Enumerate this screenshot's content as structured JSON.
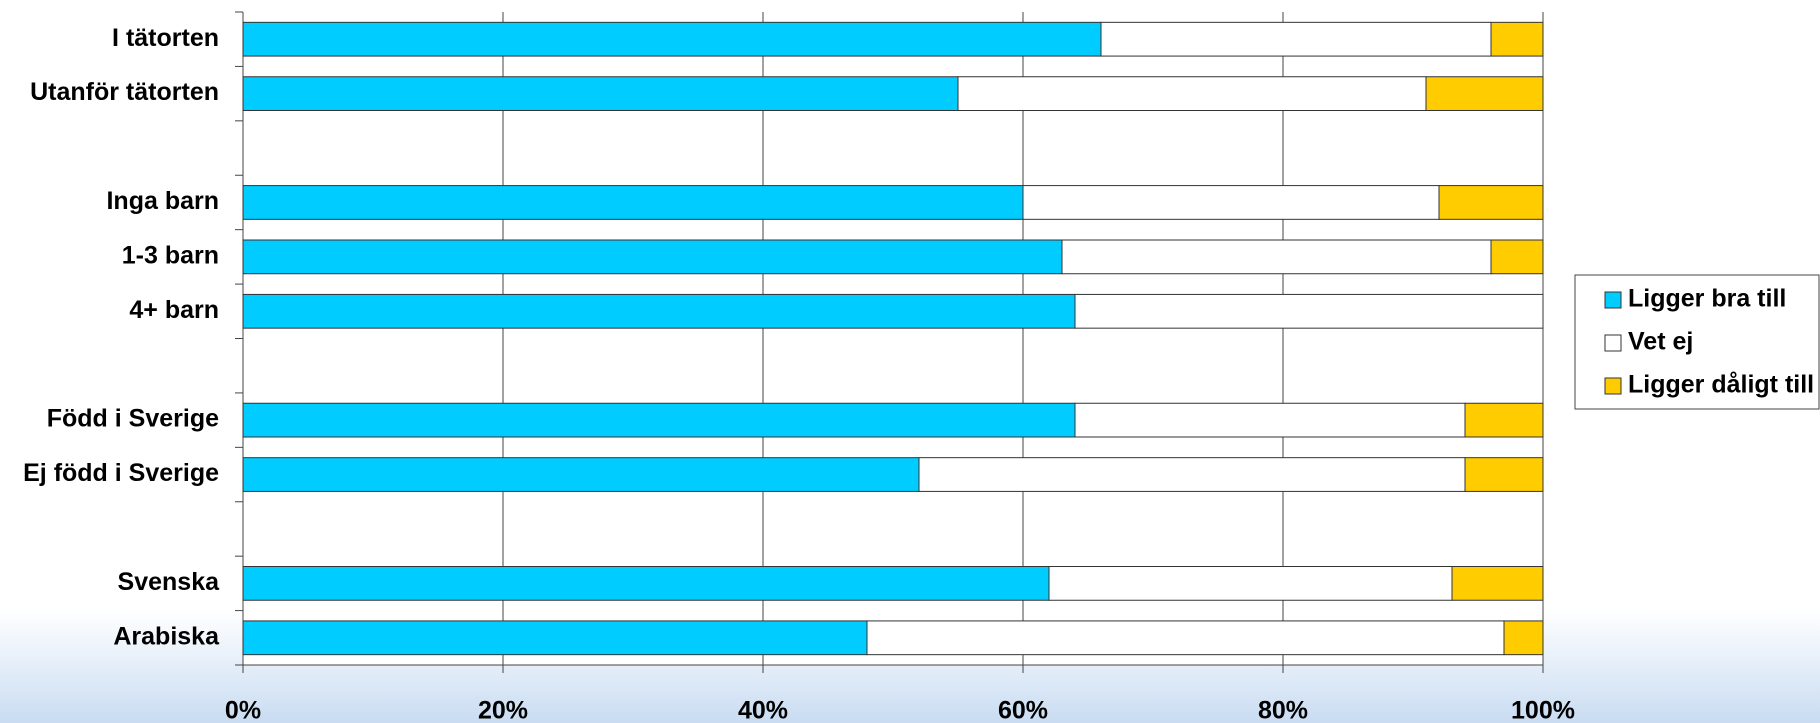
{
  "chart_data": {
    "type": "stacked_bar_horizontal",
    "categories": [
      "I tätorten",
      "Utanför tätorten",
      null,
      "Inga barn",
      "1-3 barn",
      "4+ barn",
      null,
      "Född i Sverige",
      "Ej född i Sverige",
      null,
      "Svenska",
      "Arabiska"
    ],
    "series": [
      {
        "name": "Ligger bra till",
        "color": "#00ccff",
        "values": [
          66,
          55,
          null,
          60,
          63,
          64,
          null,
          64,
          52,
          null,
          62,
          48
        ]
      },
      {
        "name": "Vet ej",
        "color": "#ffffff",
        "values": [
          30,
          36,
          null,
          32,
          33,
          36,
          null,
          30,
          42,
          null,
          31,
          49
        ]
      },
      {
        "name": "Ligger dåligt till",
        "color": "#ffcc00",
        "values": [
          4,
          9,
          null,
          8,
          4,
          0,
          null,
          6,
          6,
          null,
          7,
          3
        ]
      }
    ],
    "xlim": [
      0,
      100
    ],
    "xticks": [
      {
        "value": 0,
        "label": "0%"
      },
      {
        "value": 20,
        "label": "20%"
      },
      {
        "value": 40,
        "label": "40%"
      },
      {
        "value": 60,
        "label": "60%"
      },
      {
        "value": 80,
        "label": "80%"
      },
      {
        "value": 100,
        "label": "100%"
      }
    ],
    "grid": true,
    "legend": "right"
  }
}
